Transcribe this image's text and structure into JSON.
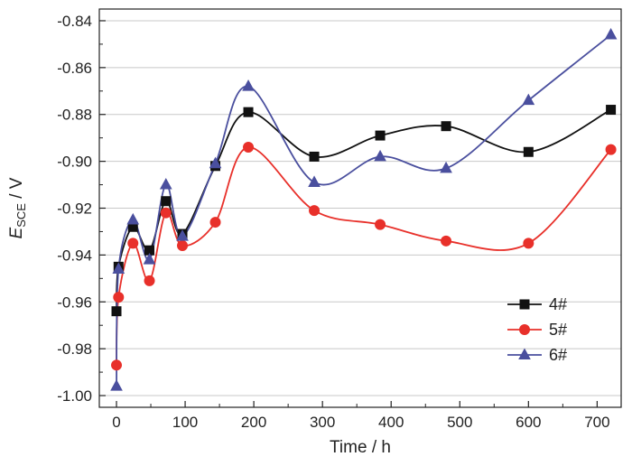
{
  "chart_data": {
    "type": "line",
    "title": "",
    "xlabel": "Time / h",
    "ylabel_main": "E",
    "ylabel_sub": "SCE",
    "ylabel_unit": " / V",
    "xlim": [
      -25,
      735
    ],
    "ylim": [
      -1.005,
      -0.835
    ],
    "x_ticks": [
      0,
      100,
      200,
      300,
      400,
      500,
      600,
      700
    ],
    "x_tick_labels": [
      "0",
      "100",
      "200",
      "300",
      "400",
      "500",
      "600",
      "700"
    ],
    "y_ticks": [
      -1.0,
      -0.98,
      -0.96,
      -0.94,
      -0.92,
      -0.9,
      -0.88,
      -0.86,
      -0.84
    ],
    "y_tick_labels": [
      "-1.00",
      "-0.98",
      "-0.96",
      "-0.94",
      "-0.92",
      "-0.90",
      "-0.88",
      "-0.86",
      "-0.84"
    ],
    "grid": "horizontal",
    "legend_position": "bottom-right",
    "x": [
      0,
      3,
      24,
      48,
      72,
      96,
      144,
      192,
      288,
      384,
      480,
      600,
      720
    ],
    "series": [
      {
        "name": "4#",
        "color": "#111111",
        "marker": "square",
        "values": [
          -0.964,
          -0.945,
          -0.928,
          -0.938,
          -0.917,
          -0.931,
          -0.902,
          -0.879,
          -0.898,
          -0.889,
          -0.885,
          -0.896,
          -0.878
        ]
      },
      {
        "name": "5#",
        "color": "#e8302a",
        "marker": "circle",
        "values": [
          -0.987,
          -0.958,
          -0.935,
          -0.951,
          -0.922,
          -0.936,
          -0.926,
          -0.894,
          -0.921,
          -0.927,
          -0.934,
          -0.935,
          -0.895
        ]
      },
      {
        "name": "6#",
        "color": "#4a4f9e",
        "marker": "triangle",
        "values": [
          -0.996,
          -0.946,
          -0.925,
          -0.942,
          -0.91,
          -0.932,
          -0.901,
          -0.868,
          -0.909,
          -0.898,
          -0.903,
          -0.874,
          -0.846
        ]
      }
    ]
  }
}
